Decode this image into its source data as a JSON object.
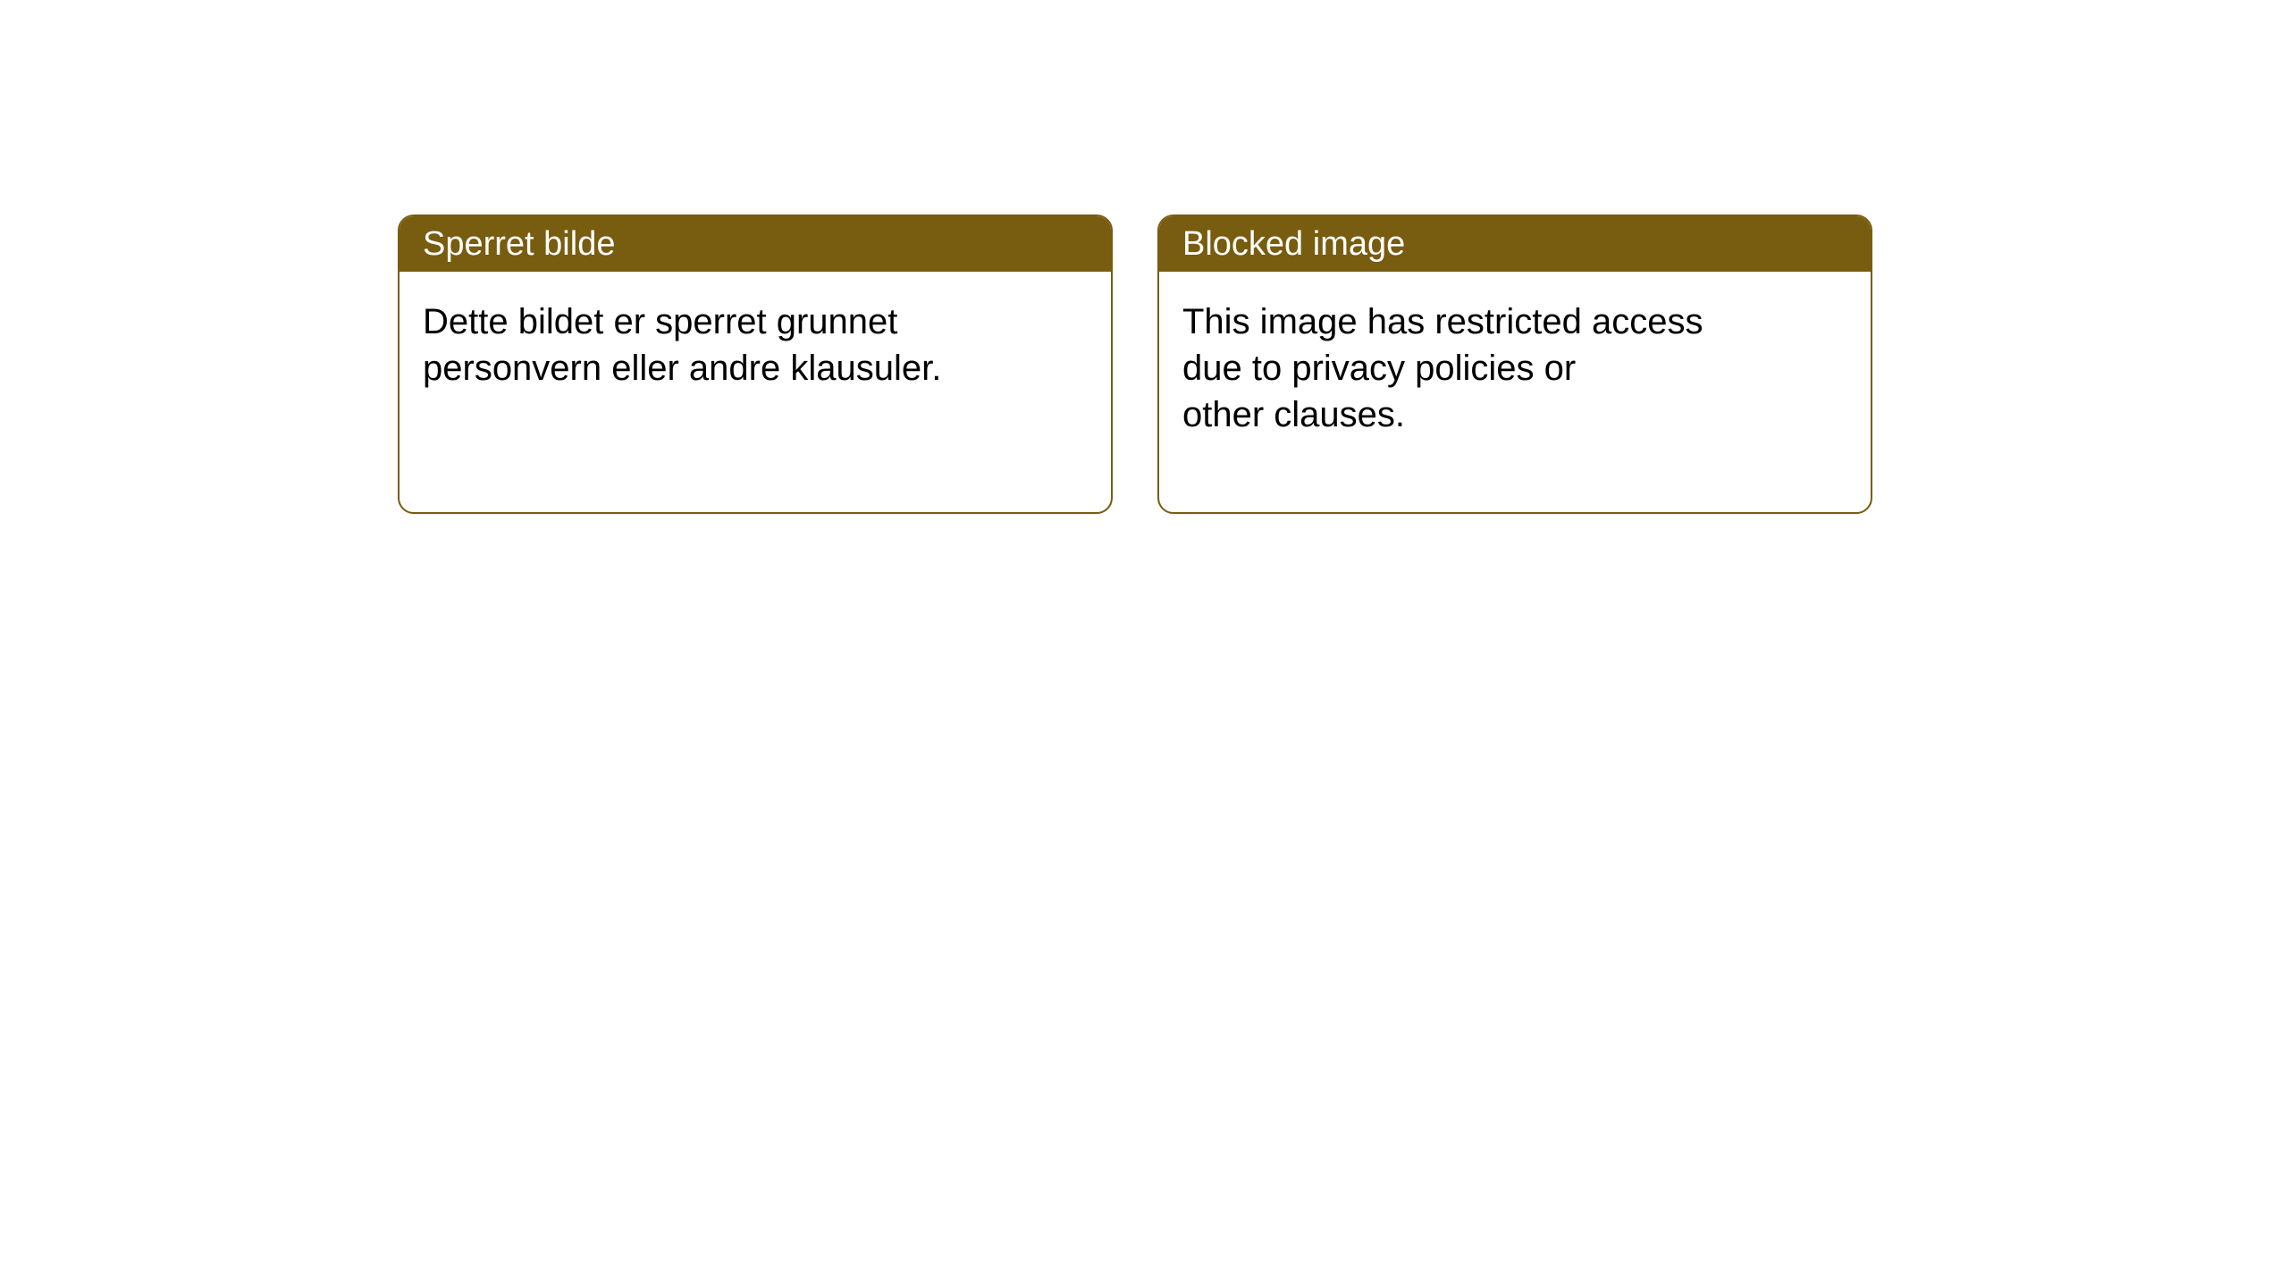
{
  "cards": [
    {
      "title": "Sperret bilde",
      "body": "Dette bildet er sperret grunnet\npersonvern eller andre klausuler."
    },
    {
      "title": "Blocked image",
      "body": "This image has restricted access\ndue to privacy policies or\nother clauses."
    }
  ],
  "style": {
    "header_bg": "#785c0f",
    "header_text_color": "#ffffff",
    "border_color": "#785c0f",
    "body_text_color": "#000000",
    "background_color": "#ffffff",
    "border_radius": 18,
    "title_fontsize": 38,
    "body_fontsize": 40
  }
}
